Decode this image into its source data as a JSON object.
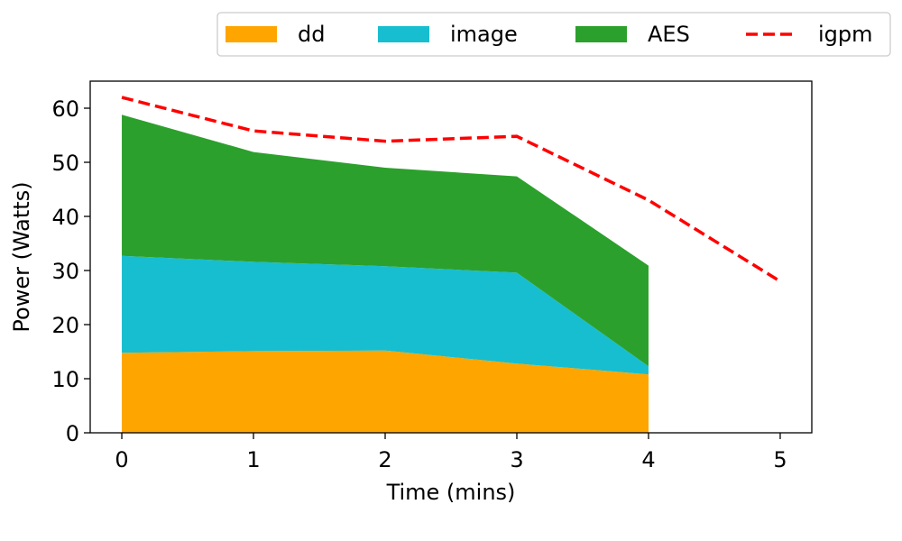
{
  "chart_data": {
    "type": "area",
    "stacked": true,
    "xlabel": "Time (mins)",
    "ylabel": "Power (Watts)",
    "xlim": [
      -0.24,
      5.24
    ],
    "ylim": [
      0,
      65
    ],
    "xticks": [
      0,
      1,
      2,
      3,
      4,
      5
    ],
    "yticks": [
      0,
      10,
      20,
      30,
      40,
      50,
      60
    ],
    "legend_position": "top-right-outside",
    "x": [
      0,
      1,
      2,
      3,
      4
    ],
    "series": [
      {
        "name": "dd",
        "color": "#ffa500",
        "values": [
          14.8,
          15.1,
          15.2,
          12.8,
          10.8
        ]
      },
      {
        "name": "image",
        "color": "#17becf",
        "values": [
          17.9,
          16.5,
          15.6,
          16.8,
          1.5
        ]
      },
      {
        "name": "AES",
        "color": "#2ca02c",
        "values": [
          26.1,
          20.3,
          18.2,
          17.8,
          18.6
        ]
      }
    ],
    "line_series": [
      {
        "name": "igpm",
        "color": "#ff0000",
        "style": "dashed",
        "x": [
          0,
          1,
          2,
          3,
          4,
          5
        ],
        "values": [
          62.0,
          55.8,
          53.9,
          54.8,
          43.0,
          28.0
        ]
      }
    ]
  }
}
